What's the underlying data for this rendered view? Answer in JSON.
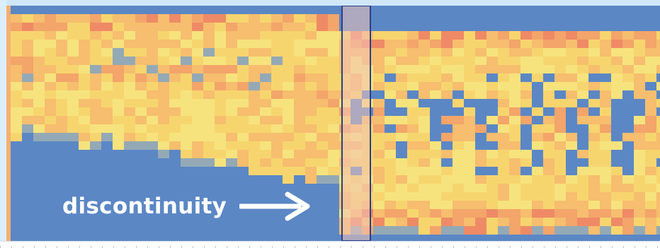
{
  "annotation": {
    "label": "discontinuity",
    "arrow_icon": "right-arrow-icon"
  },
  "colors": {
    "background_blue": "#5b87c5",
    "palette": [
      "#5b87c5",
      "#94a9b6",
      "#c7cf9a",
      "#f6e37d",
      "#f7d56e",
      "#f6be6e",
      "#f3a56a",
      "#ef8a66"
    ],
    "highlight_band": "#f3c4b8",
    "band_border": "#2d3f86",
    "accent_strip": "#f6b071"
  },
  "highlight": {
    "column_index": 28
  }
}
